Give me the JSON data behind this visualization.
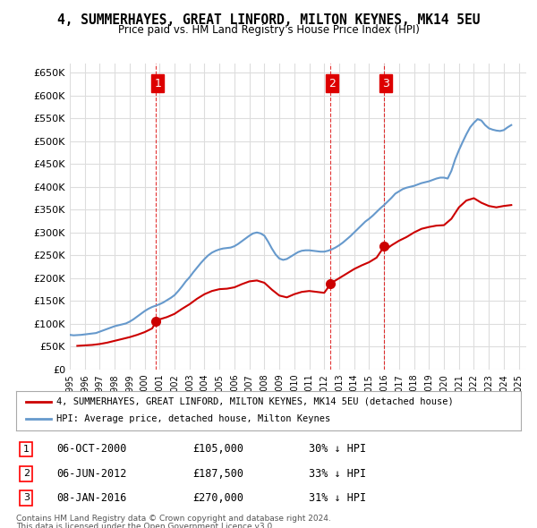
{
  "title": "4, SUMMERHAYES, GREAT LINFORD, MILTON KEYNES, MK14 5EU",
  "subtitle": "Price paid vs. HM Land Registry's House Price Index (HPI)",
  "ylabel_fmt": "£{0}K",
  "ylim": [
    0,
    670000
  ],
  "yticks": [
    0,
    50000,
    100000,
    150000,
    200000,
    250000,
    300000,
    350000,
    400000,
    450000,
    500000,
    550000,
    600000,
    650000
  ],
  "xlim_start": 1995.0,
  "xlim_end": 2025.5,
  "background_color": "#ffffff",
  "grid_color": "#dddddd",
  "sale_color": "#cc0000",
  "hpi_color": "#6699cc",
  "vline_color": "#dd0000",
  "sale_marker_color": "#cc0000",
  "legend_sale_label": "4, SUMMERHAYES, GREAT LINFORD, MILTON KEYNES, MK14 5EU (detached house)",
  "legend_hpi_label": "HPI: Average price, detached house, Milton Keynes",
  "transactions": [
    {
      "num": 1,
      "date_label": "06-OCT-2000",
      "year": 2000.77,
      "price": 105000,
      "pct": "30%",
      "dir": "↓"
    },
    {
      "num": 2,
      "date_label": "06-JUN-2012",
      "year": 2012.43,
      "price": 187500,
      "pct": "33%",
      "dir": "↓"
    },
    {
      "num": 3,
      "date_label": "08-JAN-2016",
      "year": 2016.02,
      "price": 270000,
      "pct": "31%",
      "dir": "↓"
    }
  ],
  "footer_line1": "Contains HM Land Registry data © Crown copyright and database right 2024.",
  "footer_line2": "This data is licensed under the Open Government Licence v3.0.",
  "hpi_data": {
    "years": [
      1995.0,
      1995.25,
      1995.5,
      1995.75,
      1996.0,
      1996.25,
      1996.5,
      1996.75,
      1997.0,
      1997.25,
      1997.5,
      1997.75,
      1998.0,
      1998.25,
      1998.5,
      1998.75,
      1999.0,
      1999.25,
      1999.5,
      1999.75,
      2000.0,
      2000.25,
      2000.5,
      2000.75,
      2001.0,
      2001.25,
      2001.5,
      2001.75,
      2002.0,
      2002.25,
      2002.5,
      2002.75,
      2003.0,
      2003.25,
      2003.5,
      2003.75,
      2004.0,
      2004.25,
      2004.5,
      2004.75,
      2005.0,
      2005.25,
      2005.5,
      2005.75,
      2006.0,
      2006.25,
      2006.5,
      2006.75,
      2007.0,
      2007.25,
      2007.5,
      2007.75,
      2008.0,
      2008.25,
      2008.5,
      2008.75,
      2009.0,
      2009.25,
      2009.5,
      2009.75,
      2010.0,
      2010.25,
      2010.5,
      2010.75,
      2011.0,
      2011.25,
      2011.5,
      2011.75,
      2012.0,
      2012.25,
      2012.5,
      2012.75,
      2013.0,
      2013.25,
      2013.5,
      2013.75,
      2014.0,
      2014.25,
      2014.5,
      2014.75,
      2015.0,
      2015.25,
      2015.5,
      2015.75,
      2016.0,
      2016.25,
      2016.5,
      2016.75,
      2017.0,
      2017.25,
      2017.5,
      2017.75,
      2018.0,
      2018.25,
      2018.5,
      2018.75,
      2019.0,
      2019.25,
      2019.5,
      2019.75,
      2020.0,
      2020.25,
      2020.5,
      2020.75,
      2021.0,
      2021.25,
      2021.5,
      2021.75,
      2022.0,
      2022.25,
      2022.5,
      2022.75,
      2023.0,
      2023.25,
      2023.5,
      2023.75,
      2024.0,
      2024.25,
      2024.5
    ],
    "values": [
      76000,
      75000,
      75500,
      76000,
      77000,
      78000,
      79000,
      80000,
      83000,
      86000,
      89000,
      92000,
      95000,
      97000,
      99000,
      101000,
      105000,
      110000,
      116000,
      122000,
      128000,
      133000,
      137000,
      140000,
      143000,
      147000,
      152000,
      157000,
      163000,
      172000,
      182000,
      193000,
      202000,
      213000,
      223000,
      233000,
      242000,
      250000,
      256000,
      260000,
      263000,
      265000,
      266000,
      267000,
      270000,
      275000,
      281000,
      287000,
      293000,
      298000,
      300000,
      298000,
      293000,
      280000,
      265000,
      252000,
      243000,
      240000,
      242000,
      247000,
      252000,
      257000,
      260000,
      261000,
      261000,
      260000,
      259000,
      258000,
      258000,
      260000,
      263000,
      267000,
      272000,
      278000,
      285000,
      292000,
      300000,
      308000,
      316000,
      324000,
      330000,
      337000,
      345000,
      353000,
      360000,
      368000,
      376000,
      385000,
      390000,
      395000,
      398000,
      400000,
      402000,
      405000,
      408000,
      410000,
      412000,
      415000,
      418000,
      420000,
      420000,
      418000,
      435000,
      460000,
      480000,
      498000,
      515000,
      530000,
      540000,
      548000,
      545000,
      535000,
      528000,
      525000,
      523000,
      522000,
      524000,
      530000,
      535000
    ]
  },
  "sale_data": {
    "years": [
      1995.5,
      1996.0,
      1996.5,
      1997.0,
      1997.5,
      1998.0,
      1998.5,
      1999.0,
      1999.5,
      2000.0,
      2000.5,
      2000.77,
      2001.0,
      2001.5,
      2002.0,
      2002.5,
      2003.0,
      2003.5,
      2004.0,
      2004.5,
      2005.0,
      2005.5,
      2006.0,
      2006.5,
      2007.0,
      2007.5,
      2008.0,
      2008.5,
      2009.0,
      2009.5,
      2010.0,
      2010.5,
      2011.0,
      2011.5,
      2012.0,
      2012.43,
      2012.5,
      2013.0,
      2013.5,
      2014.0,
      2014.5,
      2015.0,
      2015.5,
      2016.02,
      2016.0,
      2016.5,
      2017.0,
      2017.5,
      2018.0,
      2018.5,
      2019.0,
      2019.5,
      2020.0,
      2020.5,
      2021.0,
      2021.5,
      2022.0,
      2022.5,
      2023.0,
      2023.5,
      2024.0,
      2024.5
    ],
    "values": [
      52000,
      53000,
      54000,
      56000,
      59000,
      63000,
      67000,
      71000,
      76000,
      82000,
      90000,
      105000,
      110000,
      115000,
      122000,
      133000,
      143000,
      155000,
      165000,
      172000,
      176000,
      177000,
      180000,
      187000,
      193000,
      195000,
      190000,
      175000,
      162000,
      158000,
      165000,
      170000,
      172000,
      170000,
      168000,
      187500,
      190000,
      200000,
      210000,
      220000,
      228000,
      235000,
      245000,
      270000,
      260000,
      272000,
      282000,
      290000,
      300000,
      308000,
      312000,
      315000,
      316000,
      330000,
      355000,
      370000,
      375000,
      365000,
      358000,
      355000,
      358000,
      360000
    ]
  }
}
